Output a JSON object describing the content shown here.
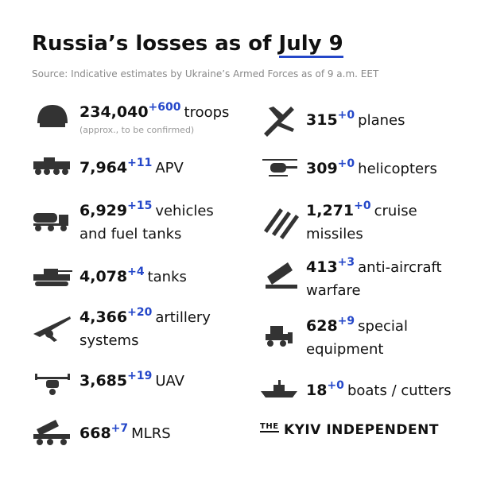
{
  "header": {
    "title": "Russia’s losses as of",
    "date": "July 9",
    "source": "Source: Indicative estimates by Ukraine’s Armed Forces as of 9 a.m. EET"
  },
  "left": [
    {
      "value": "234,040",
      "delta": "+600",
      "label": [
        "troops"
      ],
      "note": "(approx., to be confirmed)"
    },
    {
      "value": "7,964",
      "delta": "+11",
      "label": [
        "APV"
      ]
    },
    {
      "value": "6,929",
      "delta": "+15",
      "label": [
        "vehicles",
        "and fuel tanks"
      ]
    },
    {
      "value": "4,078",
      "delta": "+4",
      "label": [
        "tanks"
      ]
    },
    {
      "value": "4,366",
      "delta": "+20",
      "label": [
        "artillery",
        "systems"
      ]
    },
    {
      "value": "3,685",
      "delta": "+19",
      "label": [
        "UAV"
      ]
    },
    {
      "value": "668",
      "delta": "+7",
      "label": [
        "MLRS"
      ]
    }
  ],
  "right": [
    {
      "value": "315",
      "delta": "+0",
      "label": [
        "planes"
      ]
    },
    {
      "value": "309",
      "delta": "+0",
      "label": [
        "helicopters"
      ]
    },
    {
      "value": "1,271",
      "delta": "+0",
      "label": [
        "cruise",
        "missiles"
      ]
    },
    {
      "value": "413",
      "delta": "+3",
      "label": [
        "anti-aircraft",
        "warfare"
      ]
    },
    {
      "value": "628",
      "delta": "+9",
      "label": [
        "special",
        "equipment"
      ]
    },
    {
      "value": "18",
      "delta": "+0",
      "label": [
        "boats / cutters"
      ]
    }
  ],
  "logo": {
    "small": "THE",
    "name": "KYIV INDEPENDENT"
  }
}
